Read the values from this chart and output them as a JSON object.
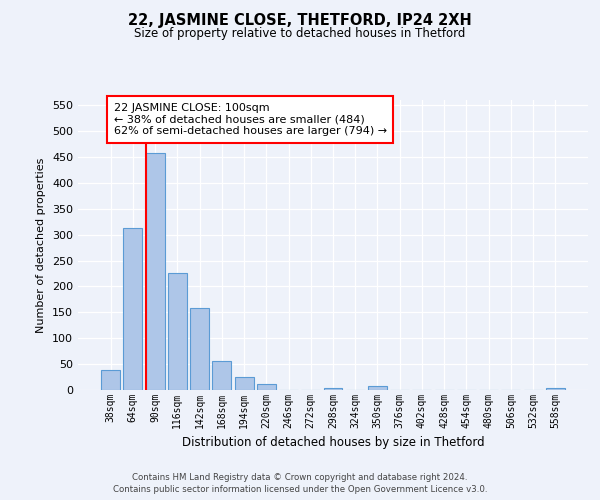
{
  "title": "22, JASMINE CLOSE, THETFORD, IP24 2XH",
  "subtitle": "Size of property relative to detached houses in Thetford",
  "xlabel": "Distribution of detached houses by size in Thetford",
  "ylabel": "Number of detached properties",
  "footer_lines": [
    "Contains HM Land Registry data © Crown copyright and database right 2024.",
    "Contains public sector information licensed under the Open Government Licence v3.0."
  ],
  "bin_labels": [
    "38sqm",
    "64sqm",
    "90sqm",
    "116sqm",
    "142sqm",
    "168sqm",
    "194sqm",
    "220sqm",
    "246sqm",
    "272sqm",
    "298sqm",
    "324sqm",
    "350sqm",
    "376sqm",
    "402sqm",
    "428sqm",
    "454sqm",
    "480sqm",
    "506sqm",
    "532sqm",
    "558sqm"
  ],
  "bar_values": [
    38,
    312,
    457,
    226,
    159,
    56,
    25,
    12,
    0,
    0,
    4,
    0,
    7,
    0,
    0,
    0,
    0,
    0,
    0,
    0,
    4
  ],
  "bar_color": "#aec6e8",
  "bar_edge_color": "#5b9bd5",
  "ylim": [
    0,
    560
  ],
  "yticks": [
    0,
    50,
    100,
    150,
    200,
    250,
    300,
    350,
    400,
    450,
    500,
    550
  ],
  "red_line_index": 2,
  "annotation_title": "22 JASMINE CLOSE: 100sqm",
  "annotation_line1": "← 38% of detached houses are smaller (484)",
  "annotation_line2": "62% of semi-detached houses are larger (794) →",
  "background_color": "#eef2fa"
}
